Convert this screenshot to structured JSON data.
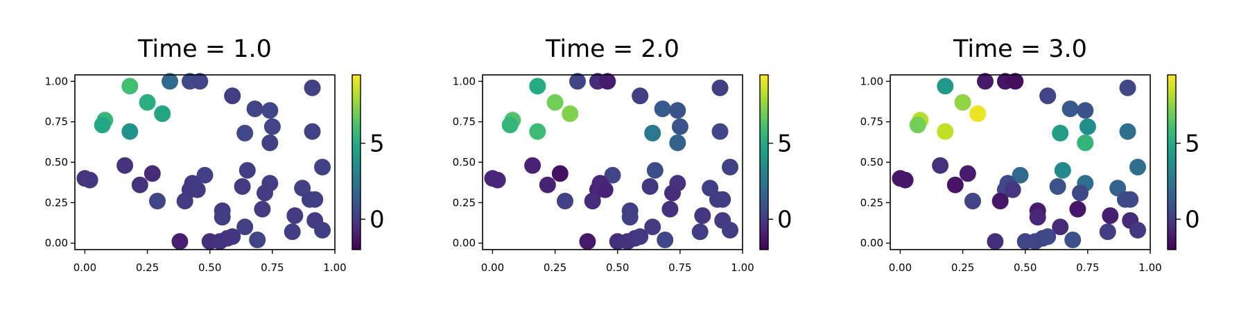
{
  "chart_data": [
    {
      "type": "scatter",
      "title": "Time = 1.0",
      "xlim": [
        -0.04,
        1.0
      ],
      "ylim": [
        -0.04,
        1.04
      ],
      "xticks": [
        0.0,
        0.25,
        0.5,
        0.75,
        1.0
      ],
      "xtick_labels": [
        "0.00",
        "0.25",
        "0.50",
        "0.75",
        "1.00"
      ],
      "yticks": [
        0.0,
        0.25,
        0.5,
        0.75,
        1.0
      ],
      "ytick_labels": [
        "0.00",
        "0.25",
        "0.50",
        "0.75",
        "1.00"
      ],
      "colorbar": {
        "colormap": "viridis",
        "range": [
          -2,
          9.5
        ],
        "ticks": [
          0,
          5
        ],
        "tick_labels": [
          "0",
          "5"
        ]
      },
      "points": [
        {
          "x": 0.18,
          "y": 0.97,
          "value": 6.0
        },
        {
          "x": 0.25,
          "y": 0.87,
          "value": 5.2
        },
        {
          "x": 0.31,
          "y": 0.8,
          "value": 4.7
        },
        {
          "x": 0.08,
          "y": 0.76,
          "value": 5.6
        },
        {
          "x": 0.07,
          "y": 0.73,
          "value": 4.9
        },
        {
          "x": 0.18,
          "y": 0.69,
          "value": 3.8
        },
        {
          "x": 0.34,
          "y": 1.0,
          "value": 2.0
        },
        {
          "x": 0.42,
          "y": 1.0,
          "value": 0.6
        },
        {
          "x": 0.46,
          "y": 1.0,
          "value": 0.3
        },
        {
          "x": 0.59,
          "y": 0.91,
          "value": 0.0
        },
        {
          "x": 0.59,
          "y": 0.91,
          "value": 0.1
        },
        {
          "x": 0.68,
          "y": 0.83,
          "value": 0.3
        },
        {
          "x": 0.74,
          "y": 0.82,
          "value": 0.4
        },
        {
          "x": 0.91,
          "y": 0.96,
          "value": 0.2
        },
        {
          "x": 0.75,
          "y": 0.72,
          "value": 0.3
        },
        {
          "x": 0.64,
          "y": 0.68,
          "value": 0.5
        },
        {
          "x": 0.74,
          "y": 0.62,
          "value": 0.2
        },
        {
          "x": 0.91,
          "y": 0.69,
          "value": 0.2
        },
        {
          "x": 0.0,
          "y": 0.4,
          "value": -0.3
        },
        {
          "x": 0.02,
          "y": 0.39,
          "value": -0.2
        },
        {
          "x": 0.16,
          "y": 0.48,
          "value": -0.3
        },
        {
          "x": 0.27,
          "y": 0.43,
          "value": -0.6
        },
        {
          "x": 0.22,
          "y": 0.36,
          "value": -0.3
        },
        {
          "x": 0.29,
          "y": 0.26,
          "value": 0.3
        },
        {
          "x": 0.48,
          "y": 0.42,
          "value": 0.2
        },
        {
          "x": 0.43,
          "y": 0.37,
          "value": -0.1
        },
        {
          "x": 0.42,
          "y": 0.33,
          "value": -0.2
        },
        {
          "x": 0.45,
          "y": 0.33,
          "value": -0.1
        },
        {
          "x": 0.4,
          "y": 0.26,
          "value": 0.0
        },
        {
          "x": 0.65,
          "y": 0.45,
          "value": 0.1
        },
        {
          "x": 0.63,
          "y": 0.35,
          "value": 0.0
        },
        {
          "x": 0.74,
          "y": 0.37,
          "value": 0.1
        },
        {
          "x": 0.72,
          "y": 0.31,
          "value": 0.0
        },
        {
          "x": 0.71,
          "y": 0.21,
          "value": 0.0
        },
        {
          "x": 0.55,
          "y": 0.2,
          "value": 0.0
        },
        {
          "x": 0.55,
          "y": 0.16,
          "value": 0.1
        },
        {
          "x": 0.64,
          "y": 0.1,
          "value": 0.2
        },
        {
          "x": 0.38,
          "y": 0.01,
          "value": -1.0
        },
        {
          "x": 0.5,
          "y": 0.01,
          "value": -0.5
        },
        {
          "x": 0.54,
          "y": 0.01,
          "value": -0.4
        },
        {
          "x": 0.57,
          "y": 0.03,
          "value": -0.3
        },
        {
          "x": 0.59,
          "y": 0.04,
          "value": -0.2
        },
        {
          "x": 0.69,
          "y": 0.02,
          "value": 0.3
        },
        {
          "x": 0.87,
          "y": 0.34,
          "value": 0.2
        },
        {
          "x": 0.9,
          "y": 0.27,
          "value": 0.1
        },
        {
          "x": 0.92,
          "y": 0.27,
          "value": 0.1
        },
        {
          "x": 0.95,
          "y": 0.47,
          "value": 0.2
        },
        {
          "x": 0.84,
          "y": 0.17,
          "value": 0.0
        },
        {
          "x": 0.83,
          "y": 0.07,
          "value": 0.1
        },
        {
          "x": 0.92,
          "y": 0.14,
          "value": 0.0
        },
        {
          "x": 0.95,
          "y": 0.08,
          "value": 0.1
        }
      ]
    },
    {
      "type": "scatter",
      "title": "Time = 2.0",
      "xlim": [
        -0.04,
        1.0
      ],
      "ylim": [
        -0.04,
        1.04
      ],
      "xticks": [
        0.0,
        0.25,
        0.5,
        0.75,
        1.0
      ],
      "xtick_labels": [
        "0.00",
        "0.25",
        "0.50",
        "0.75",
        "1.00"
      ],
      "yticks": [
        0.0,
        0.25,
        0.5,
        0.75,
        1.0
      ],
      "ytick_labels": [
        "0.00",
        "0.25",
        "0.50",
        "0.75",
        "1.00"
      ],
      "colorbar": {
        "colormap": "viridis",
        "range": [
          -2,
          9.5
        ],
        "ticks": [
          0,
          5
        ],
        "tick_labels": [
          "0",
          "5"
        ]
      },
      "points": [
        {
          "x": 0.18,
          "y": 0.97,
          "value": 5.0
        },
        {
          "x": 0.25,
          "y": 0.87,
          "value": 7.0
        },
        {
          "x": 0.31,
          "y": 0.8,
          "value": 7.3
        },
        {
          "x": 0.08,
          "y": 0.76,
          "value": 6.3
        },
        {
          "x": 0.07,
          "y": 0.73,
          "value": 5.5
        },
        {
          "x": 0.18,
          "y": 0.69,
          "value": 5.8
        },
        {
          "x": 0.34,
          "y": 1.0,
          "value": 0.3
        },
        {
          "x": 0.42,
          "y": 1.0,
          "value": -0.6
        },
        {
          "x": 0.46,
          "y": 1.0,
          "value": -1.1
        },
        {
          "x": 0.59,
          "y": 0.91,
          "value": 0.0
        },
        {
          "x": 0.59,
          "y": 0.91,
          "value": 0.1
        },
        {
          "x": 0.68,
          "y": 0.83,
          "value": 1.3
        },
        {
          "x": 0.74,
          "y": 0.82,
          "value": 1.0
        },
        {
          "x": 0.91,
          "y": 0.96,
          "value": 0.1
        },
        {
          "x": 0.75,
          "y": 0.72,
          "value": 1.0
        },
        {
          "x": 0.64,
          "y": 0.68,
          "value": 2.6
        },
        {
          "x": 0.74,
          "y": 0.62,
          "value": 1.6
        },
        {
          "x": 0.91,
          "y": 0.69,
          "value": 0.4
        },
        {
          "x": 0.0,
          "y": 0.4,
          "value": -0.8
        },
        {
          "x": 0.02,
          "y": 0.39,
          "value": -0.8
        },
        {
          "x": 0.16,
          "y": 0.48,
          "value": -0.9
        },
        {
          "x": 0.27,
          "y": 0.43,
          "value": -1.5
        },
        {
          "x": 0.22,
          "y": 0.36,
          "value": -0.9
        },
        {
          "x": 0.29,
          "y": 0.26,
          "value": 0.2
        },
        {
          "x": 0.48,
          "y": 0.42,
          "value": 0.3
        },
        {
          "x": 0.43,
          "y": 0.37,
          "value": -0.8
        },
        {
          "x": 0.42,
          "y": 0.33,
          "value": -0.8
        },
        {
          "x": 0.45,
          "y": 0.33,
          "value": -0.9
        },
        {
          "x": 0.4,
          "y": 0.26,
          "value": -0.6
        },
        {
          "x": 0.65,
          "y": 0.45,
          "value": 0.7
        },
        {
          "x": 0.63,
          "y": 0.35,
          "value": -0.2
        },
        {
          "x": 0.74,
          "y": 0.37,
          "value": -0.3
        },
        {
          "x": 0.72,
          "y": 0.31,
          "value": -0.5
        },
        {
          "x": 0.71,
          "y": 0.21,
          "value": -0.4
        },
        {
          "x": 0.55,
          "y": 0.2,
          "value": 0.1
        },
        {
          "x": 0.55,
          "y": 0.16,
          "value": 0.2
        },
        {
          "x": 0.64,
          "y": 0.1,
          "value": 0.0
        },
        {
          "x": 0.38,
          "y": 0.01,
          "value": -1.2
        },
        {
          "x": 0.5,
          "y": 0.01,
          "value": -0.5
        },
        {
          "x": 0.54,
          "y": 0.01,
          "value": -0.4
        },
        {
          "x": 0.57,
          "y": 0.03,
          "value": -0.3
        },
        {
          "x": 0.59,
          "y": 0.04,
          "value": -0.1
        },
        {
          "x": 0.69,
          "y": 0.02,
          "value": 0.4
        },
        {
          "x": 0.87,
          "y": 0.34,
          "value": 0.1
        },
        {
          "x": 0.9,
          "y": 0.27,
          "value": 0.0
        },
        {
          "x": 0.92,
          "y": 0.27,
          "value": 0.1
        },
        {
          "x": 0.95,
          "y": 0.47,
          "value": 0.2
        },
        {
          "x": 0.84,
          "y": 0.17,
          "value": -0.2
        },
        {
          "x": 0.83,
          "y": 0.07,
          "value": 0.1
        },
        {
          "x": 0.92,
          "y": 0.14,
          "value": 0.0
        },
        {
          "x": 0.95,
          "y": 0.08,
          "value": 0.1
        }
      ]
    },
    {
      "type": "scatter",
      "title": "Time = 3.0",
      "xlim": [
        -0.04,
        1.0
      ],
      "ylim": [
        -0.04,
        1.04
      ],
      "xticks": [
        0.0,
        0.25,
        0.5,
        0.75,
        1.0
      ],
      "xtick_labels": [
        "0.00",
        "0.25",
        "0.50",
        "0.75",
        "1.00"
      ],
      "yticks": [
        0.0,
        0.25,
        0.5,
        0.75,
        1.0
      ],
      "ytick_labels": [
        "0.00",
        "0.25",
        "0.50",
        "0.75",
        "1.00"
      ],
      "colorbar": {
        "colormap": "viridis",
        "range": [
          -2,
          9.5
        ],
        "ticks": [
          0,
          5
        ],
        "tick_labels": [
          "0",
          "5"
        ]
      },
      "points": [
        {
          "x": 0.18,
          "y": 0.97,
          "value": 4.2
        },
        {
          "x": 0.25,
          "y": 0.87,
          "value": 7.6
        },
        {
          "x": 0.31,
          "y": 0.8,
          "value": 9.2
        },
        {
          "x": 0.08,
          "y": 0.76,
          "value": 8.2
        },
        {
          "x": 0.07,
          "y": 0.73,
          "value": 7.0
        },
        {
          "x": 0.18,
          "y": 0.69,
          "value": 8.4
        },
        {
          "x": 0.34,
          "y": 1.0,
          "value": -1.2
        },
        {
          "x": 0.42,
          "y": 1.0,
          "value": -1.4
        },
        {
          "x": 0.46,
          "y": 1.0,
          "value": -1.6
        },
        {
          "x": 0.59,
          "y": 0.91,
          "value": 0.2
        },
        {
          "x": 0.59,
          "y": 0.91,
          "value": 0.3
        },
        {
          "x": 0.68,
          "y": 0.83,
          "value": 1.2
        },
        {
          "x": 0.74,
          "y": 0.82,
          "value": 1.0
        },
        {
          "x": 0.91,
          "y": 0.96,
          "value": 0.4
        },
        {
          "x": 0.75,
          "y": 0.72,
          "value": 3.6
        },
        {
          "x": 0.64,
          "y": 0.68,
          "value": 4.4
        },
        {
          "x": 0.74,
          "y": 0.62,
          "value": 5.5
        },
        {
          "x": 0.91,
          "y": 0.69,
          "value": 2.2
        },
        {
          "x": 0.0,
          "y": 0.4,
          "value": -1.3
        },
        {
          "x": 0.02,
          "y": 0.39,
          "value": -1.3
        },
        {
          "x": 0.16,
          "y": 0.48,
          "value": -0.4
        },
        {
          "x": 0.27,
          "y": 0.43,
          "value": -1.1
        },
        {
          "x": 0.22,
          "y": 0.36,
          "value": -1.4
        },
        {
          "x": 0.29,
          "y": 0.26,
          "value": 0.3
        },
        {
          "x": 0.48,
          "y": 0.42,
          "value": 2.0
        },
        {
          "x": 0.43,
          "y": 0.37,
          "value": 0.6
        },
        {
          "x": 0.42,
          "y": 0.33,
          "value": 0.4
        },
        {
          "x": 0.45,
          "y": 0.33,
          "value": -0.2
        },
        {
          "x": 0.4,
          "y": 0.26,
          "value": -1.3
        },
        {
          "x": 0.65,
          "y": 0.45,
          "value": 3.4
        },
        {
          "x": 0.63,
          "y": 0.35,
          "value": 1.0
        },
        {
          "x": 0.74,
          "y": 0.37,
          "value": 2.2
        },
        {
          "x": 0.72,
          "y": 0.31,
          "value": 0.5
        },
        {
          "x": 0.71,
          "y": 0.21,
          "value": -1.3
        },
        {
          "x": 0.55,
          "y": 0.2,
          "value": -1.1
        },
        {
          "x": 0.55,
          "y": 0.16,
          "value": -0.7
        },
        {
          "x": 0.64,
          "y": 0.1,
          "value": -0.6
        },
        {
          "x": 0.38,
          "y": 0.01,
          "value": -0.5
        },
        {
          "x": 0.5,
          "y": 0.01,
          "value": 0.4
        },
        {
          "x": 0.54,
          "y": 0.01,
          "value": 0.4
        },
        {
          "x": 0.57,
          "y": 0.03,
          "value": 0.3
        },
        {
          "x": 0.59,
          "y": 0.04,
          "value": 0.5
        },
        {
          "x": 0.69,
          "y": 0.02,
          "value": 0.8
        },
        {
          "x": 0.87,
          "y": 0.34,
          "value": 1.6
        },
        {
          "x": 0.9,
          "y": 0.27,
          "value": 0.6
        },
        {
          "x": 0.92,
          "y": 0.27,
          "value": 0.5
        },
        {
          "x": 0.95,
          "y": 0.47,
          "value": 2.2
        },
        {
          "x": 0.84,
          "y": 0.17,
          "value": -1.0
        },
        {
          "x": 0.83,
          "y": 0.07,
          "value": 0.1
        },
        {
          "x": 0.92,
          "y": 0.14,
          "value": -0.6
        },
        {
          "x": 0.95,
          "y": 0.08,
          "value": -0.1
        }
      ]
    }
  ]
}
